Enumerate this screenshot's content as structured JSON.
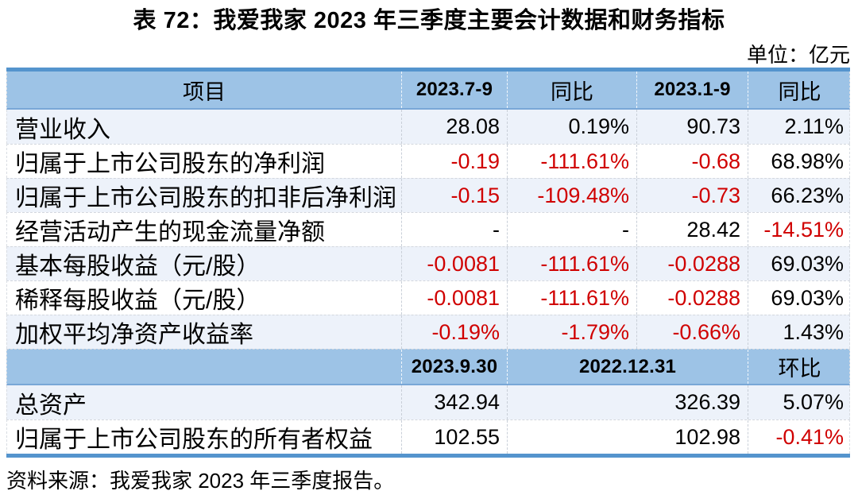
{
  "title": "表 72：我爱我家 2023 年三季度主要会计数据和财务指标",
  "unit": "单位：亿元",
  "source": "资料来源：我爱我家 2023 年三季度报告。",
  "colors": {
    "header_bg": "#9DC3E6",
    "row_alt": "#EDF2FA",
    "border_blue": "#5494CD",
    "divider": "#79A7D7",
    "negative": "#D00000"
  },
  "table": {
    "header1": {
      "c1": "项目",
      "c2": "2023.7-9",
      "c3": "同比",
      "c4": "2023.1-9",
      "c5": "同比"
    },
    "rows": [
      {
        "label": "营业收入",
        "v1": "28.08",
        "v2": "0.19%",
        "v3": "90.73",
        "v4": "2.11%"
      },
      {
        "label": "归属于上市公司股东的净利润",
        "v1": "-0.19",
        "v2": "-111.61%",
        "v3": "-0.68",
        "v4": "68.98%"
      },
      {
        "label": "归属于上市公司股东的扣非后净利润",
        "v1": "-0.15",
        "v2": "-109.48%",
        "v3": "-0.73",
        "v4": "66.23%"
      },
      {
        "label": "经营活动产生的现金流量净额",
        "v1": "-",
        "v2": "-",
        "v3": "28.42",
        "v4": "-14.51%"
      },
      {
        "label": "基本每股收益（元/股）",
        "v1": "-0.0081",
        "v2": "-111.61%",
        "v3": "-0.0288",
        "v4": "69.03%"
      },
      {
        "label": "稀释每股收益（元/股）",
        "v1": "-0.0081",
        "v2": "-111.61%",
        "v3": "-0.0288",
        "v4": "69.03%"
      },
      {
        "label": "加权平均净资产收益率",
        "v1": "-0.19%",
        "v2": "-1.79%",
        "v3": "-0.66%",
        "v4": "1.43%"
      }
    ],
    "header2": {
      "c2": "2023.9.30",
      "c3": "2022.12.31",
      "c5": "环比"
    },
    "rows2": [
      {
        "label": "总资产",
        "v1": "342.94",
        "v3": "326.39",
        "v4": "5.07%"
      },
      {
        "label": "归属于上市公司股东的所有者权益",
        "v1": "102.55",
        "v3": "102.98",
        "v4": "-0.41%"
      }
    ]
  }
}
